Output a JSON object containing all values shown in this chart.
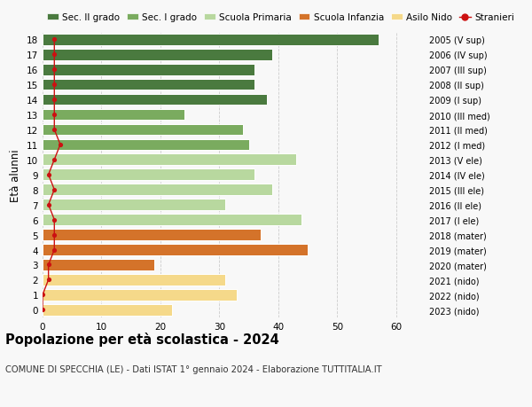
{
  "ages": [
    0,
    1,
    2,
    3,
    4,
    5,
    6,
    7,
    8,
    9,
    10,
    11,
    12,
    13,
    14,
    15,
    16,
    17,
    18
  ],
  "values": [
    22,
    33,
    31,
    19,
    45,
    37,
    44,
    31,
    39,
    36,
    43,
    35,
    34,
    24,
    38,
    36,
    36,
    39,
    57
  ],
  "stranieri": [
    0,
    0,
    1,
    1,
    2,
    2,
    2,
    1,
    2,
    1,
    2,
    3,
    2,
    2,
    2,
    2,
    2,
    2,
    2
  ],
  "right_labels": [
    "2023 (nido)",
    "2022 (nido)",
    "2021 (nido)",
    "2020 (mater)",
    "2019 (mater)",
    "2018 (mater)",
    "2017 (I ele)",
    "2016 (II ele)",
    "2015 (III ele)",
    "2014 (IV ele)",
    "2013 (V ele)",
    "2012 (I med)",
    "2011 (II med)",
    "2010 (III med)",
    "2009 (I sup)",
    "2008 (II sup)",
    "2007 (III sup)",
    "2006 (IV sup)",
    "2005 (V sup)"
  ],
  "colors": {
    "sec2": "#4a7a3f",
    "sec1": "#7aab5f",
    "primaria": "#b8d89f",
    "infanzia": "#d4732a",
    "nido": "#f5d98a",
    "stranieri": "#cc1111"
  },
  "bar_colors": [
    "#f5d98a",
    "#f5d98a",
    "#f5d98a",
    "#d4732a",
    "#d4732a",
    "#d4732a",
    "#b8d89f",
    "#b8d89f",
    "#b8d89f",
    "#b8d89f",
    "#b8d89f",
    "#7aab5f",
    "#7aab5f",
    "#7aab5f",
    "#4a7a3f",
    "#4a7a3f",
    "#4a7a3f",
    "#4a7a3f",
    "#4a7a3f"
  ],
  "legend_labels": [
    "Sec. II grado",
    "Sec. I grado",
    "Scuola Primaria",
    "Scuola Infanzia",
    "Asilo Nido",
    "Stranieri"
  ],
  "legend_colors": [
    "#4a7a3f",
    "#7aab5f",
    "#b8d89f",
    "#d4732a",
    "#f5d98a",
    "#cc1111"
  ],
  "ylabel_text": "Età alunni",
  "title": "Popolazione per età scolastica - 2024",
  "subtitle": "COMUNE DI SPECCHIA (LE) - Dati ISTAT 1° gennaio 2024 - Elaborazione TUTTITALIA.IT",
  "xlim": [
    0,
    65
  ],
  "xticks": [
    0,
    10,
    20,
    30,
    40,
    50,
    60
  ],
  "bg_color": "#f8f8f8",
  "grid_color": "#cccccc"
}
